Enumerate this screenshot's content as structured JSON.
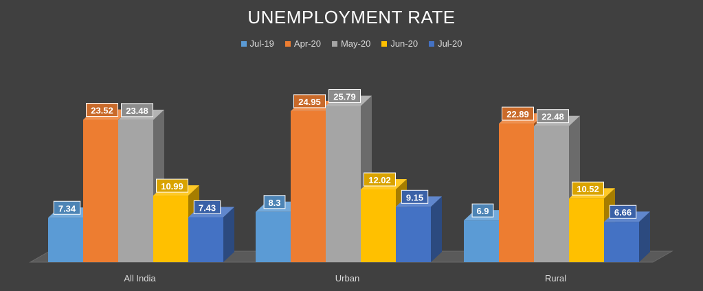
{
  "chart_data": {
    "type": "bar",
    "title": "UNEMPLOYMENT RATE",
    "categories": [
      "All India",
      "Urban",
      "Rural"
    ],
    "series": [
      {
        "name": "Jul-19",
        "color": "#5b9bd5",
        "values": [
          7.34,
          8.3,
          6.9
        ]
      },
      {
        "name": "Apr-20",
        "color": "#ed7d31",
        "values": [
          23.52,
          24.95,
          22.89
        ]
      },
      {
        "name": "May-20",
        "color": "#a5a5a5",
        "values": [
          23.48,
          25.79,
          22.48
        ]
      },
      {
        "name": "Jun-20",
        "color": "#ffc000",
        "values": [
          10.99,
          12.02,
          10.52
        ]
      },
      {
        "name": "Jul-20",
        "color": "#4472c4",
        "values": [
          7.43,
          9.15,
          6.66
        ]
      }
    ],
    "ylim": [
      0,
      28
    ],
    "legend_position": "top",
    "grid": false,
    "style": "3d-clustered-column"
  }
}
